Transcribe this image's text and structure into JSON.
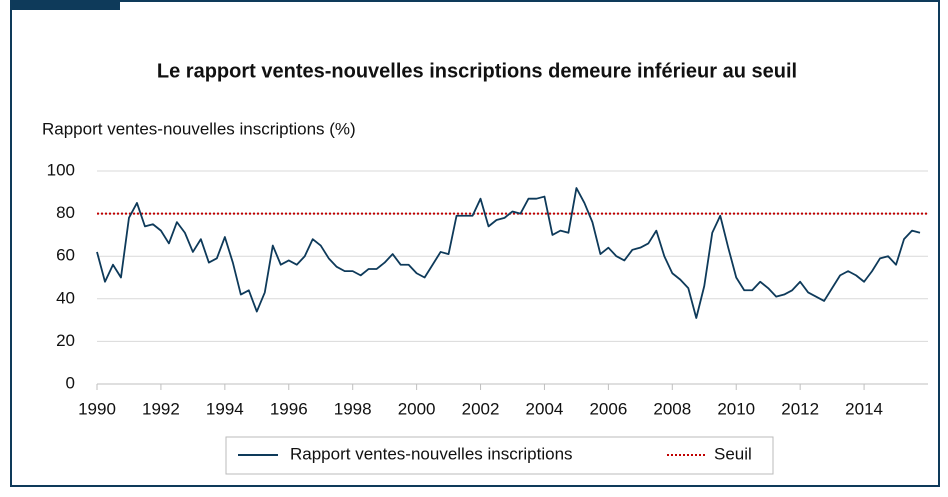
{
  "chart_data": {
    "type": "line",
    "title": "Le rapport ventes-nouvelles inscriptions demeure inférieur au seuil",
    "y_label": "Rapport ventes-nouvelles inscriptions (%)",
    "xlim": [
      1990,
      2016
    ],
    "xticks": [
      1990,
      1992,
      1994,
      1996,
      1998,
      2000,
      2002,
      2004,
      2006,
      2008,
      2010,
      2012,
      2014
    ],
    "ylim": [
      0,
      100
    ],
    "yticks": [
      0,
      20,
      40,
      60,
      80,
      100
    ],
    "grid": true,
    "series": [
      {
        "name": "Rapport ventes-nouvelles inscriptions",
        "color": "#0e3a5a",
        "x": [
          1990,
          1990.25,
          1990.5,
          1990.75,
          1991,
          1991.25,
          1991.5,
          1991.75,
          1992,
          1992.25,
          1992.5,
          1992.75,
          1993,
          1993.25,
          1993.5,
          1993.75,
          1994,
          1994.25,
          1994.5,
          1994.75,
          1995,
          1995.25,
          1995.5,
          1995.75,
          1996,
          1996.25,
          1996.5,
          1996.75,
          1997,
          1997.25,
          1997.5,
          1997.75,
          1998,
          1998.25,
          1998.5,
          1998.75,
          1999,
          1999.25,
          1999.5,
          1999.75,
          2000,
          2000.25,
          2000.5,
          2000.75,
          2001,
          2001.25,
          2001.5,
          2001.75,
          2002,
          2002.25,
          2002.5,
          2002.75,
          2003,
          2003.25,
          2003.5,
          2003.75,
          2004,
          2004.25,
          2004.5,
          2004.75,
          2005,
          2005.25,
          2005.5,
          2005.75,
          2006,
          2006.25,
          2006.5,
          2006.75,
          2007,
          2007.25,
          2007.5,
          2007.75,
          2008,
          2008.25,
          2008.5,
          2008.75,
          2009,
          2009.25,
          2009.5,
          2009.75,
          2010,
          2010.25,
          2010.5,
          2010.75,
          2011,
          2011.25,
          2011.5,
          2011.75,
          2012,
          2012.25,
          2012.5,
          2012.75,
          2013,
          2013.25,
          2013.5,
          2013.75,
          2014,
          2014.25,
          2014.5,
          2014.75,
          2015,
          2015.25,
          2015.5,
          2015.75
        ],
        "values": [
          62,
          48,
          56,
          50,
          78,
          85,
          74,
          75,
          72,
          66,
          76,
          71,
          62,
          68,
          57,
          59,
          69,
          57,
          42,
          44,
          34,
          43,
          65,
          56,
          58,
          56,
          60,
          68,
          65,
          59,
          55,
          53,
          53,
          51,
          54,
          54,
          57,
          61,
          56,
          56,
          52,
          50,
          56,
          62,
          61,
          79,
          79,
          79,
          87,
          74,
          77,
          78,
          81,
          80,
          87,
          87,
          88,
          70,
          72,
          71,
          92,
          85,
          76,
          61,
          64,
          60,
          58,
          63,
          64,
          66,
          72,
          60,
          52,
          49,
          45,
          31,
          46,
          71,
          79,
          64,
          50,
          44,
          44,
          48,
          45,
          41,
          42,
          44,
          48,
          43,
          41,
          39,
          45,
          51,
          53,
          51,
          48,
          53,
          59,
          60,
          56,
          68,
          72,
          71
        ]
      }
    ],
    "threshold": {
      "name": "Seuil",
      "value": 80,
      "color": "#c00000"
    }
  }
}
